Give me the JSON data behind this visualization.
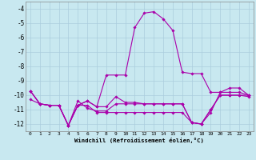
{
  "xlabel": "Windchill (Refroidissement éolien,°C)",
  "background_color": "#c8e8f0",
  "grid_color": "#aaccdd",
  "line_color": "#aa00aa",
  "x": [
    0,
    1,
    2,
    3,
    4,
    5,
    6,
    7,
    8,
    9,
    10,
    11,
    12,
    13,
    14,
    15,
    16,
    17,
    18,
    19,
    20,
    21,
    22,
    23
  ],
  "series1": [
    -9.7,
    -10.6,
    -10.7,
    -10.7,
    -12.1,
    -10.7,
    -10.4,
    -10.8,
    -8.6,
    -8.6,
    -8.6,
    -5.3,
    -4.3,
    -4.2,
    -4.7,
    -5.5,
    -8.4,
    -8.5,
    -8.5,
    -9.8,
    -9.8,
    -9.5,
    -9.5,
    -10.0
  ],
  "series2": [
    -10.3,
    -10.6,
    -10.7,
    -10.7,
    -12.1,
    -10.4,
    -10.9,
    -11.1,
    -11.1,
    -10.6,
    -10.6,
    -10.6,
    -10.6,
    -10.6,
    -10.6,
    -10.6,
    -10.6,
    -11.9,
    -12.0,
    -11.2,
    -9.8,
    -9.8,
    -9.8,
    -10.0
  ],
  "series3": [
    -9.7,
    -10.6,
    -10.7,
    -10.7,
    -12.1,
    -10.7,
    -10.7,
    -11.2,
    -11.2,
    -11.2,
    -11.2,
    -11.2,
    -11.2,
    -11.2,
    -11.2,
    -11.2,
    -11.2,
    -11.9,
    -12.0,
    -11.0,
    -10.0,
    -10.0,
    -10.0,
    -10.0
  ],
  "series4": [
    -9.7,
    -10.6,
    -10.7,
    -10.7,
    -12.1,
    -10.7,
    -10.4,
    -10.8,
    -10.8,
    -10.1,
    -10.5,
    -10.5,
    -10.6,
    -10.6,
    -10.6,
    -10.6,
    -10.6,
    -11.9,
    -12.0,
    -11.0,
    -10.0,
    -10.0,
    -10.0,
    -10.1
  ],
  "ylim": [
    -12.5,
    -3.5
  ],
  "yticks": [
    -4,
    -5,
    -6,
    -7,
    -8,
    -9,
    -10,
    -11,
    -12
  ],
  "xlim": [
    -0.5,
    23.5
  ]
}
